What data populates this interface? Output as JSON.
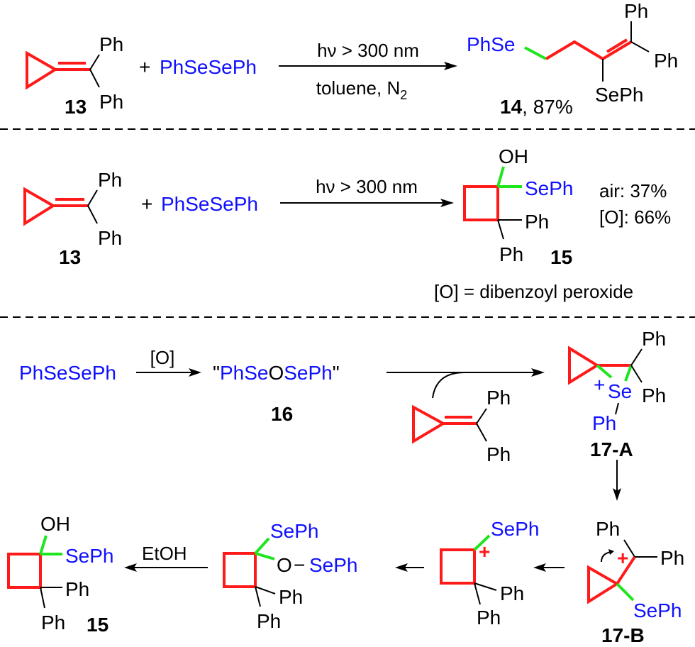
{
  "colors": {
    "reactive_bond": "#ff1a1a",
    "new_bond": "#1ee61e",
    "selenium_label": "#1010ff"
  },
  "row1": {
    "reactant_label": "13",
    "ph_top": "Ph",
    "ph_bottom": "Ph",
    "plus": "+",
    "reagent": "PhSeSePh",
    "condition_top": "hν > 300 nm",
    "condition_bottom": "toluene, N",
    "condition_bottom_sub": "2",
    "product": {
      "phse": "PhSe",
      "ph_top": "Ph",
      "ph_right": "Ph",
      "seph": "SePh",
      "label": "14",
      "yield": ", 87%"
    }
  },
  "row2": {
    "reactant_label": "13",
    "ph_top": "Ph",
    "ph_bottom": "Ph",
    "plus": "+",
    "reagent": "PhSeSePh",
    "condition_top": "hν > 300 nm",
    "product": {
      "oh": "OH",
      "seph": "SePh",
      "ph_right": "Ph",
      "ph_bottom": "Ph",
      "label": "15"
    },
    "yield_air": "air: 37%",
    "yield_oxidant": "[O]: 66%",
    "footnote": "[O] = dibenzoyl peroxide"
  },
  "mechanism": {
    "start": "PhSeSePh",
    "oxidant": "[O]",
    "intermediate16": {
      "quote_open": "\"",
      "part1": "PhSe",
      "part2": "O",
      "part3": "SePh",
      "quote_close": "\"",
      "label": "16"
    },
    "alkene": {
      "ph_top": "Ph",
      "ph_bottom": "Ph"
    },
    "i17a": {
      "ph_top": "Ph",
      "ph_right": "Ph",
      "plus": "+",
      "se": "Se",
      "se_ph": "Ph",
      "label": "17-A"
    },
    "i17b": {
      "ph_top": "Ph",
      "ph_right": "Ph",
      "plus": "+",
      "seph": "SePh",
      "label": "17-B"
    },
    "cation": {
      "seph": "SePh",
      "plus": "+",
      "ph_right": "Ph",
      "ph_bottom": "Ph"
    },
    "selenite": {
      "seph": "SePh",
      "o": "O",
      "dash": "−",
      "o_seph": "SePh",
      "ph_right": "Ph",
      "ph_bottom": "Ph"
    },
    "ethanol": "EtOH",
    "product": {
      "oh": "OH",
      "seph": "SePh",
      "ph_right": "Ph",
      "ph_bottom": "Ph",
      "label": "15"
    }
  }
}
